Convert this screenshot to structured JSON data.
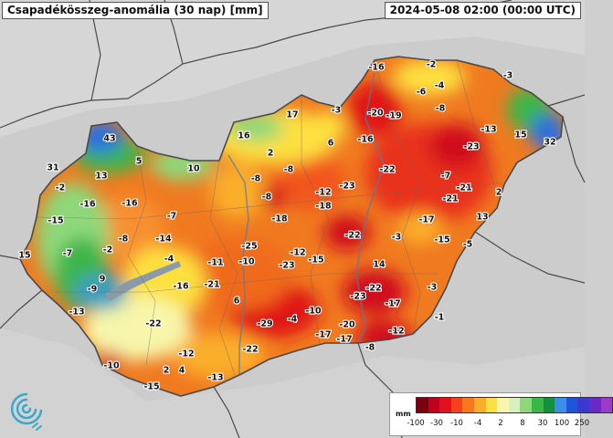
{
  "header": {
    "title": "Csapadékösszeg-anomália (30 nap) [mm]",
    "timestamp": "2024-05-08 02:00 (00:00 UTC)"
  },
  "legend": {
    "unit": "mm",
    "tick_labels": [
      "-100",
      "-30",
      "-10",
      "-4",
      "2",
      "8",
      "30",
      "100",
      "250"
    ],
    "colors": [
      "#7a0010",
      "#c0001e",
      "#e3101e",
      "#f5411e",
      "#f7781e",
      "#fbae2a",
      "#fde040",
      "#f7f6aa",
      "#d6f0c0",
      "#8ed87a",
      "#3cb54a",
      "#148f3c",
      "#3c8ee8",
      "#1f55d8",
      "#3a3ad0",
      "#6a28c8",
      "#9a3ac8"
    ]
  },
  "colors": {
    "background": "#cfcfcf",
    "country_fill": "#f07020",
    "strong_deficit": "#e3101e",
    "surplus_green": "#3cb54a",
    "surplus_blue": "#2a6fe0",
    "border": "#4a4a4a"
  },
  "map_labels": [
    {
      "value": "-16",
      "loc": "north-east"
    },
    {
      "value": "-2",
      "loc": "north-east"
    },
    {
      "value": "-3",
      "loc": "north-east"
    },
    {
      "value": "-6",
      "loc": "north-east"
    },
    {
      "value": "-4",
      "loc": "north-east"
    },
    {
      "value": "-8",
      "loc": "north-east"
    },
    {
      "value": "-20",
      "loc": "north"
    },
    {
      "value": "-19",
      "loc": "north"
    },
    {
      "value": "-13",
      "loc": "north-east"
    },
    {
      "value": "-23",
      "loc": "north-east"
    },
    {
      "value": "15",
      "loc": "north-east"
    },
    {
      "value": "32",
      "loc": "north-east"
    },
    {
      "value": "17",
      "loc": "north"
    },
    {
      "value": "-3",
      "loc": "north"
    },
    {
      "value": "16",
      "loc": "north"
    },
    {
      "value": "6",
      "loc": "north"
    },
    {
      "value": "-16",
      "loc": "north"
    },
    {
      "value": "43",
      "loc": "north-west"
    },
    {
      "value": "5",
      "loc": "north-west"
    },
    {
      "value": "2",
      "loc": "north"
    },
    {
      "value": "10",
      "loc": "north-west"
    },
    {
      "value": "-8",
      "loc": "centre"
    },
    {
      "value": "-22",
      "loc": "north-east"
    },
    {
      "value": "31",
      "loc": "north-west"
    },
    {
      "value": "13",
      "loc": "north-west"
    },
    {
      "value": "-8",
      "loc": "centre"
    },
    {
      "value": "-12",
      "loc": "centre"
    },
    {
      "value": "-23",
      "loc": "east"
    },
    {
      "value": "-7",
      "loc": "east"
    },
    {
      "value": "-21",
      "loc": "east"
    },
    {
      "value": "2",
      "loc": "north-west"
    },
    {
      "value": "-2",
      "loc": "west"
    },
    {
      "value": "-16",
      "loc": "west"
    },
    {
      "value": "-16",
      "loc": "centre"
    },
    {
      "value": "-8",
      "loc": "centre"
    },
    {
      "value": "-18",
      "loc": "centre"
    },
    {
      "value": "-18",
      "loc": "east"
    },
    {
      "value": "-21",
      "loc": "east"
    },
    {
      "value": "13",
      "loc": "west"
    },
    {
      "value": "-15",
      "loc": "west"
    },
    {
      "value": "-7",
      "loc": "east"
    },
    {
      "value": "-17",
      "loc": "west"
    },
    {
      "value": "-8",
      "loc": "west"
    },
    {
      "value": "-14",
      "loc": "centre"
    },
    {
      "value": "-25",
      "loc": "centre"
    },
    {
      "value": "-22",
      "loc": "east"
    },
    {
      "value": "-3",
      "loc": "east"
    },
    {
      "value": "-15",
      "loc": "east"
    },
    {
      "value": "-5",
      "loc": "west"
    },
    {
      "value": "15",
      "loc": "west"
    },
    {
      "value": "-7",
      "loc": "west"
    },
    {
      "value": "-2",
      "loc": "centre"
    },
    {
      "value": "-4",
      "loc": "centre"
    },
    {
      "value": "-11",
      "loc": "centre"
    },
    {
      "value": "-10",
      "loc": "centre"
    },
    {
      "value": "-12",
      "loc": "centre"
    },
    {
      "value": "-23",
      "loc": "centre"
    },
    {
      "value": "-15",
      "loc": "south-east"
    },
    {
      "value": "14",
      "loc": "west"
    },
    {
      "value": "9",
      "loc": "west"
    },
    {
      "value": "-9",
      "loc": "west"
    },
    {
      "value": "-16",
      "loc": "centre"
    },
    {
      "value": "-21",
      "loc": "south-east"
    },
    {
      "value": "-22",
      "loc": "south-east"
    },
    {
      "value": "-23",
      "loc": "south-east"
    },
    {
      "value": "-17",
      "loc": "south-east"
    },
    {
      "value": "-3",
      "loc": "centre"
    },
    {
      "value": "6",
      "loc": "west"
    },
    {
      "value": "-13",
      "loc": "south"
    },
    {
      "value": "-10",
      "loc": "south-east"
    },
    {
      "value": "-1",
      "loc": "south-west"
    },
    {
      "value": "-22",
      "loc": "south"
    },
    {
      "value": "-29",
      "loc": "south"
    },
    {
      "value": "-4",
      "loc": "south"
    },
    {
      "value": "-20",
      "loc": "south-east"
    },
    {
      "value": "-12",
      "loc": "south"
    },
    {
      "value": "-17",
      "loc": "south"
    },
    {
      "value": "-17",
      "loc": "south-east"
    },
    {
      "value": "-8",
      "loc": "south-west"
    },
    {
      "value": "-12",
      "loc": "south"
    },
    {
      "value": "-22",
      "loc": "south-west"
    },
    {
      "value": "-10",
      "loc": "south-west"
    },
    {
      "value": "2",
      "loc": "south-west"
    },
    {
      "value": "4",
      "loc": "south"
    },
    {
      "value": "-13",
      "loc": "south-west"
    },
    {
      "value": "-15",
      "loc": "south-west"
    }
  ]
}
